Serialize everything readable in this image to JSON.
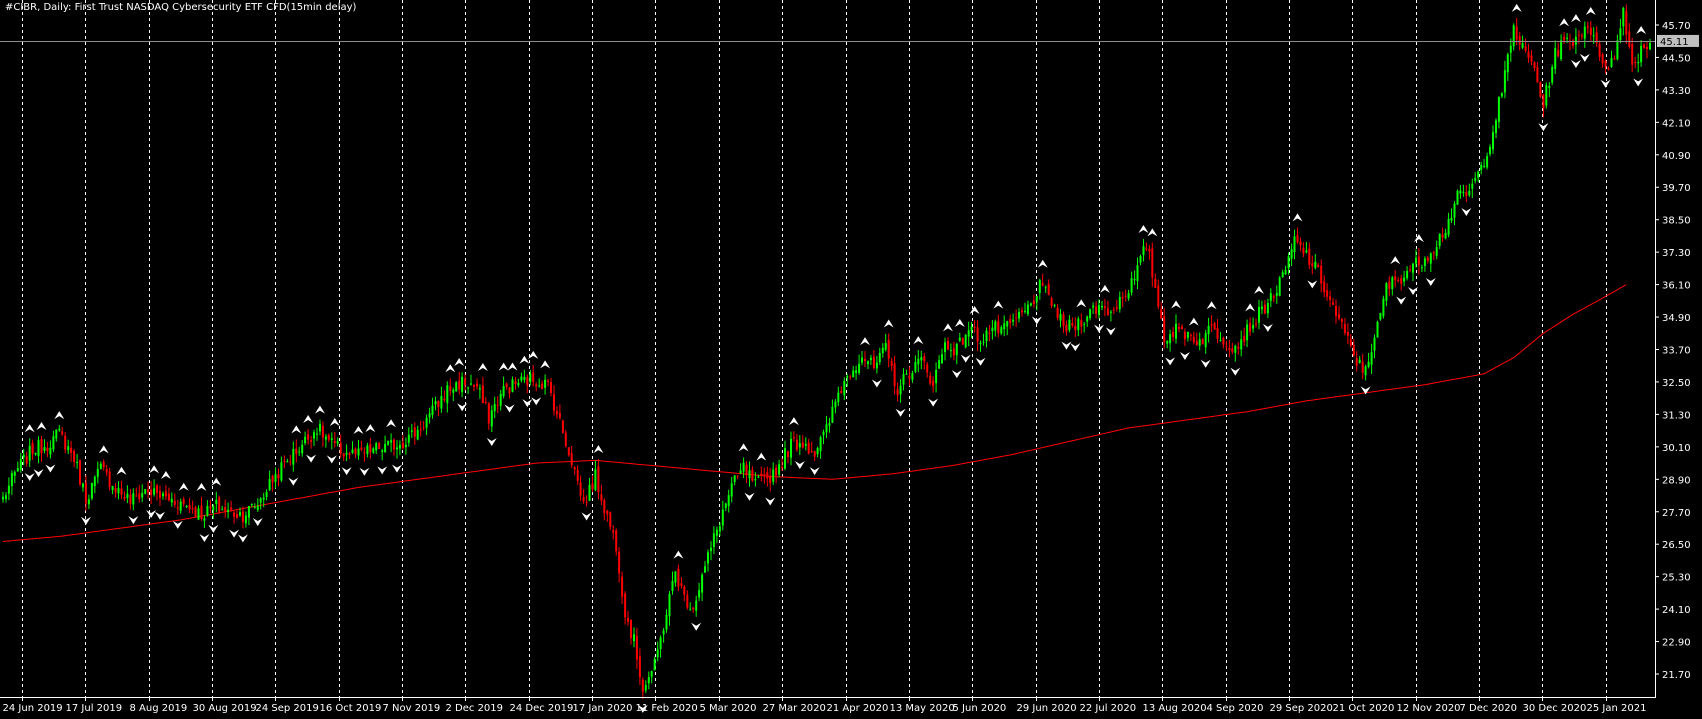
{
  "chart_data": {
    "type": "candlestick",
    "title": "#CIBR, Daily: First Trust NASDAQ Cybersecurity ETF CFD(15min delay)",
    "y_ticks": [
      "45.70",
      "44.50",
      "43.30",
      "42.10",
      "40.90",
      "39.70",
      "38.50",
      "37.30",
      "36.10",
      "34.90",
      "33.70",
      "32.50",
      "31.30",
      "30.10",
      "28.90",
      "27.70",
      "26.50",
      "25.30",
      "24.10",
      "22.90",
      "21.70"
    ],
    "ylim": [
      20.85,
      46.55
    ],
    "x_ticks": [
      "24 Jun 2019",
      "17 Jul 2019",
      "8 Aug 2019",
      "30 Aug 2019",
      "24 Sep 2019",
      "16 Oct 2019",
      "7 Nov 2019",
      "2 Dec 2019",
      "24 Dec 2019",
      "17 Jan 2020",
      "11 Feb 2020",
      "5 Mar 2020",
      "27 Mar 2020",
      "21 Apr 2020",
      "13 May 2020",
      "5 Jun 2020",
      "29 Jun 2020",
      "22 Jul 2020",
      "13 Aug 2020",
      "4 Sep 2020",
      "29 Sep 2020",
      "21 Oct 2020",
      "12 Nov 2020",
      "7 Dec 2020",
      "30 Dec 2020",
      "25 Jan 2021"
    ],
    "current_price": "45.11",
    "price_anchors": [
      [
        0,
        28.2
      ],
      [
        5,
        29.3
      ],
      [
        10,
        30.0
      ],
      [
        15,
        30.2
      ],
      [
        19,
        30.6
      ],
      [
        24,
        29.7
      ],
      [
        28,
        28.2
      ],
      [
        33,
        29.3
      ],
      [
        38,
        28.6
      ],
      [
        43,
        28.1
      ],
      [
        48,
        28.5
      ],
      [
        53,
        28.3
      ],
      [
        58,
        28.1
      ],
      [
        63,
        27.9
      ],
      [
        67,
        27.6
      ],
      [
        72,
        27.9
      ],
      [
        76,
        27.7
      ],
      [
        81,
        27.6
      ],
      [
        86,
        28.0
      ],
      [
        91,
        28.9
      ],
      [
        96,
        29.6
      ],
      [
        101,
        30.2
      ],
      [
        106,
        30.8
      ],
      [
        111,
        30.2
      ],
      [
        115,
        29.9
      ],
      [
        120,
        29.8
      ],
      [
        125,
        30.0
      ],
      [
        130,
        30.1
      ],
      [
        135,
        30.3
      ],
      [
        140,
        30.7
      ],
      [
        145,
        31.4
      ],
      [
        150,
        32.2
      ],
      [
        155,
        32.5
      ],
      [
        160,
        32.3
      ],
      [
        164,
        31.2
      ],
      [
        169,
        32.2
      ],
      [
        174,
        32.5
      ],
      [
        179,
        32.6
      ],
      [
        184,
        32.4
      ],
      [
        188,
        31.0
      ],
      [
        192,
        29.6
      ],
      [
        196,
        28.0
      ],
      [
        200,
        29.0
      ],
      [
        204,
        27.5
      ],
      [
        207,
        26.5
      ],
      [
        210,
        24.0
      ],
      [
        213,
        22.9
      ],
      [
        216,
        21.2
      ],
      [
        220,
        22.0
      ],
      [
        223,
        23.5
      ],
      [
        227,
        25.5
      ],
      [
        230,
        24.5
      ],
      [
        233,
        24.2
      ],
      [
        236,
        25.3
      ],
      [
        240,
        26.7
      ],
      [
        243,
        27.7
      ],
      [
        246,
        28.6
      ],
      [
        250,
        29.3
      ],
      [
        254,
        28.7
      ],
      [
        258,
        28.9
      ],
      [
        262,
        29.4
      ],
      [
        266,
        30.2
      ],
      [
        270,
        30.3
      ],
      [
        274,
        29.9
      ],
      [
        278,
        30.7
      ],
      [
        282,
        32.1
      ],
      [
        286,
        32.9
      ],
      [
        290,
        33.5
      ],
      [
        294,
        33.0
      ],
      [
        298,
        33.7
      ],
      [
        302,
        32.2
      ],
      [
        306,
        32.9
      ],
      [
        310,
        33.3
      ],
      [
        314,
        32.5
      ],
      [
        318,
        33.9
      ],
      [
        322,
        33.7
      ],
      [
        326,
        34.5
      ],
      [
        330,
        34.1
      ],
      [
        334,
        34.5
      ],
      [
        338,
        34.4
      ],
      [
        342,
        34.8
      ],
      [
        346,
        35.2
      ],
      [
        350,
        36.0
      ],
      [
        354,
        35.5
      ],
      [
        358,
        34.5
      ],
      [
        362,
        34.6
      ],
      [
        366,
        35.0
      ],
      [
        370,
        35.3
      ],
      [
        374,
        35.1
      ],
      [
        378,
        35.7
      ],
      [
        382,
        36.3
      ],
      [
        386,
        37.6
      ],
      [
        389,
        36.0
      ],
      [
        392,
        34.2
      ],
      [
        396,
        34.4
      ],
      [
        400,
        34.3
      ],
      [
        404,
        34.0
      ],
      [
        408,
        34.5
      ],
      [
        412,
        34.1
      ],
      [
        416,
        33.8
      ],
      [
        420,
        34.4
      ],
      [
        424,
        35.0
      ],
      [
        428,
        35.6
      ],
      [
        432,
        36.3
      ],
      [
        436,
        37.7
      ],
      [
        440,
        37.2
      ],
      [
        444,
        36.5
      ],
      [
        448,
        35.5
      ],
      [
        452,
        34.5
      ],
      [
        456,
        33.5
      ],
      [
        459,
        32.9
      ],
      [
        463,
        34.0
      ],
      [
        467,
        36.0
      ],
      [
        471,
        36.3
      ],
      [
        475,
        36.7
      ],
      [
        479,
        37.0
      ],
      [
        483,
        37.5
      ],
      [
        487,
        38.2
      ],
      [
        491,
        39.3
      ],
      [
        495,
        39.5
      ],
      [
        499,
        40.4
      ],
      [
        503,
        41.8
      ],
      [
        507,
        43.8
      ],
      [
        510,
        45.6
      ],
      [
        513,
        44.8
      ],
      [
        517,
        44.1
      ],
      [
        520,
        42.7
      ],
      [
        524,
        44.7
      ],
      [
        528,
        45.1
      ],
      [
        531,
        45.2
      ],
      [
        535,
        45.8
      ],
      [
        538,
        44.8
      ],
      [
        541,
        44.3
      ],
      [
        544,
        44.4
      ],
      [
        547,
        46.3
      ],
      [
        550,
        44.2
      ],
      [
        553,
        44.8
      ],
      [
        556,
        45.1
      ]
    ],
    "ma_anchors": [
      [
        0,
        26.6
      ],
      [
        20,
        26.8
      ],
      [
        40,
        27.1
      ],
      [
        60,
        27.4
      ],
      [
        80,
        27.8
      ],
      [
        100,
        28.2
      ],
      [
        120,
        28.6
      ],
      [
        140,
        28.9
      ],
      [
        160,
        29.2
      ],
      [
        180,
        29.5
      ],
      [
        200,
        29.6
      ],
      [
        220,
        29.4
      ],
      [
        240,
        29.2
      ],
      [
        260,
        29.0
      ],
      [
        280,
        28.9
      ],
      [
        300,
        29.1
      ],
      [
        320,
        29.4
      ],
      [
        340,
        29.8
      ],
      [
        360,
        30.3
      ],
      [
        380,
        30.8
      ],
      [
        400,
        31.1
      ],
      [
        420,
        31.4
      ],
      [
        440,
        31.8
      ],
      [
        460,
        32.1
      ],
      [
        480,
        32.4
      ],
      [
        500,
        32.8
      ],
      [
        510,
        33.4
      ],
      [
        520,
        34.3
      ],
      [
        530,
        35.0
      ],
      [
        540,
        35.6
      ],
      [
        548,
        36.1
      ]
    ],
    "n_bars": 557,
    "colors": {
      "background": "#000000",
      "up_candle": "#00ff00",
      "down_candle": "#ff0000",
      "moving_average": "#ff0000",
      "grid_vertical": "#ffffff",
      "price_line": "#8c8c8c",
      "axis": "#ffffff",
      "price_label_bg": "#c0c0c0"
    },
    "grid": "vertical dashed",
    "fractal_markers": true
  }
}
